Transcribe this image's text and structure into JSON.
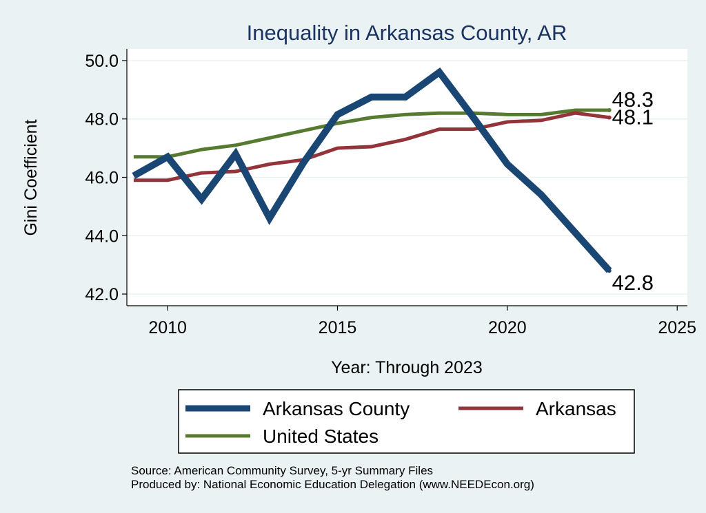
{
  "chart_data": {
    "type": "line",
    "title": "Inequality in Arkansas County, AR",
    "xlabel": "Year: Through 2023",
    "ylabel": "Gini Coefficient",
    "xlim": [
      2008.8,
      2025.3
    ],
    "ylim": [
      41.6,
      50.4
    ],
    "xticks": [
      2010,
      2015,
      2020,
      2025
    ],
    "yticks": [
      42.0,
      44.0,
      46.0,
      48.0,
      50.0
    ],
    "ytick_labels": [
      "42.0",
      "44.0",
      "46.0",
      "48.0",
      "50.0"
    ],
    "grid": true,
    "legend_position": "bottom",
    "x": [
      2009,
      2010,
      2011,
      2012,
      2013,
      2014,
      2015,
      2016,
      2017,
      2018,
      2019,
      2020,
      2021,
      2022,
      2023
    ],
    "series": [
      {
        "name": "Arkansas County",
        "color": "#1a4674",
        "values": [
          46.05,
          46.7,
          45.25,
          46.8,
          44.6,
          46.5,
          48.15,
          48.75,
          48.75,
          49.6,
          48.05,
          46.45,
          45.4,
          44.1,
          42.8
        ],
        "end_label": "42.8"
      },
      {
        "name": "Arkansas",
        "color": "#92343a",
        "values": [
          45.9,
          45.9,
          46.15,
          46.2,
          46.45,
          46.6,
          47.0,
          47.05,
          47.3,
          47.65,
          47.65,
          47.9,
          47.95,
          48.2,
          48.05
        ],
        "end_label": "48.1"
      },
      {
        "name": "United States",
        "color": "#567a30",
        "values": [
          46.7,
          46.7,
          46.95,
          47.1,
          47.35,
          47.6,
          47.85,
          48.05,
          48.15,
          48.2,
          48.2,
          48.15,
          48.15,
          48.3,
          48.3
        ],
        "end_label": "48.3"
      }
    ]
  },
  "notes": {
    "source": "Source: American Community Survey, 5-yr Summary Files",
    "produced_by": "Produced by: National Economic Education Delegation (www.NEEDEcon.org)"
  }
}
